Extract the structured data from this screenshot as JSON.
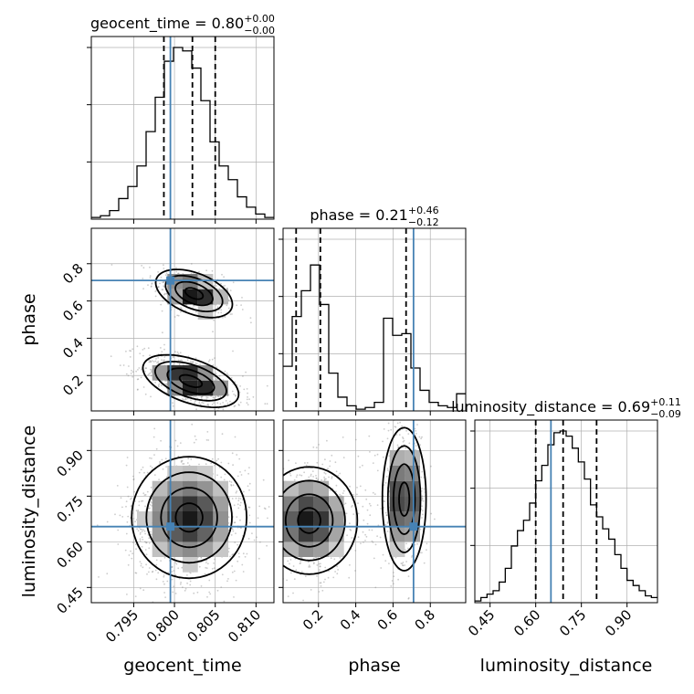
{
  "chart_data": {
    "type": "corner",
    "parameters": [
      "geocent_time",
      "phase",
      "luminosity_distance"
    ],
    "truths": {
      "geocent_time": 0.7995,
      "phase": 0.71,
      "luminosity_distance": 0.65
    },
    "axes": {
      "geocent_time": {
        "range": [
          0.7898,
          0.8122
        ],
        "ticks": [
          "0.795",
          "0.800",
          "0.805",
          "0.810"
        ],
        "tick_values": [
          0.795,
          0.8,
          0.805,
          0.81
        ]
      },
      "phase": {
        "range": [
          0.01,
          0.99
        ],
        "ticks": [
          "0.2",
          "0.4",
          "0.6",
          "0.8"
        ],
        "tick_values": [
          0.2,
          0.4,
          0.6,
          0.8
        ]
      },
      "luminosity_distance": {
        "range": [
          0.4,
          1.0
        ],
        "ticks": [
          "0.45",
          "0.60",
          "0.75",
          "0.90"
        ],
        "tick_values": [
          0.45,
          0.6,
          0.75,
          0.9
        ]
      }
    },
    "titles": {
      "geocent_time": {
        "name": "geocent_time",
        "median": "0.80",
        "plus": "+0.00",
        "minus": "−0.00"
      },
      "phase": {
        "name": "phase",
        "median": "0.21",
        "plus": "+0.46",
        "minus": "−0.12"
      },
      "luminosity_distance": {
        "name": "luminosity_distance",
        "median": "0.69",
        "plus": "+0.11",
        "minus": "−0.09"
      }
    },
    "quantiles": {
      "geocent_time": [
        0.7987,
        0.8022,
        0.805
      ],
      "phase": [
        0.08,
        0.21,
        0.67
      ],
      "luminosity_distance": [
        0.6,
        0.69,
        0.8
      ]
    },
    "histograms": {
      "geocent_time": {
        "edges": [
          0.7898,
          0.79092,
          0.79204,
          0.79316,
          0.79428,
          0.7954,
          0.79652,
          0.79764,
          0.79876,
          0.79988,
          0.801,
          0.80212,
          0.80324,
          0.80436,
          0.80548,
          0.8066,
          0.80772,
          0.80884,
          0.80996,
          0.81108,
          0.8122
        ],
        "counts": [
          0.01,
          0.02,
          0.05,
          0.12,
          0.19,
          0.31,
          0.51,
          0.71,
          0.92,
          1.0,
          0.98,
          0.88,
          0.69,
          0.45,
          0.31,
          0.23,
          0.13,
          0.07,
          0.03,
          0.01
        ]
      },
      "phase": {
        "edges": [
          0.01,
          0.059,
          0.108,
          0.157,
          0.206,
          0.255,
          0.304,
          0.353,
          0.402,
          0.451,
          0.5,
          0.549,
          0.598,
          0.647,
          0.696,
          0.745,
          0.794,
          0.843,
          0.892,
          0.941,
          0.99
        ],
        "counts": [
          0.26,
          0.55,
          0.7,
          0.85,
          0.62,
          0.22,
          0.08,
          0.03,
          0.01,
          0.02,
          0.05,
          0.54,
          0.44,
          0.45,
          0.25,
          0.12,
          0.05,
          0.03,
          0.02,
          0.1
        ]
      },
      "luminosity_distance": {
        "edges": [
          0.4,
          0.42,
          0.44,
          0.46,
          0.48,
          0.5,
          0.52,
          0.54,
          0.56,
          0.58,
          0.6,
          0.62,
          0.64,
          0.66,
          0.68,
          0.7,
          0.72,
          0.74,
          0.76,
          0.78,
          0.8,
          0.82,
          0.84,
          0.86,
          0.88,
          0.9,
          0.92,
          0.94,
          0.96,
          0.98,
          1.0
        ],
        "counts": [
          0.01,
          0.03,
          0.05,
          0.07,
          0.12,
          0.2,
          0.33,
          0.42,
          0.48,
          0.58,
          0.71,
          0.8,
          0.92,
          0.99,
          1.0,
          0.97,
          0.9,
          0.82,
          0.72,
          0.57,
          0.5,
          0.43,
          0.37,
          0.28,
          0.2,
          0.13,
          0.1,
          0.07,
          0.04,
          0.03
        ]
      }
    },
    "pairs": [
      {
        "x": "geocent_time",
        "y": "phase",
        "modes": [
          {
            "mx": 0.8024,
            "my": 0.64,
            "sx": 0.002,
            "sy": 0.055,
            "rho": -0.45,
            "w": 0.4
          },
          {
            "mx": 0.802,
            "my": 0.17,
            "sx": 0.0025,
            "sy": 0.06,
            "rho": -0.5,
            "w": 0.6
          }
        ]
      },
      {
        "x": "geocent_time",
        "y": "luminosity_distance",
        "modes": [
          {
            "mx": 0.8018,
            "my": 0.68,
            "sx": 0.003,
            "sy": 0.085,
            "rho": 0.0,
            "w": 1.0
          }
        ]
      },
      {
        "x": "phase",
        "y": "luminosity_distance",
        "modes": [
          {
            "mx": 0.15,
            "my": 0.67,
            "sx": 0.11,
            "sy": 0.075,
            "rho": 0.0,
            "w": 0.62
          },
          {
            "mx": 0.66,
            "my": 0.74,
            "sx": 0.05,
            "sy": 0.1,
            "rho": 0.0,
            "w": 0.38
          }
        ]
      }
    ],
    "colors": {
      "truth": "#4682b4",
      "line": "#000000",
      "grid": "#b0b0b0",
      "scatter": "#8f8f8f"
    },
    "grid": true
  }
}
